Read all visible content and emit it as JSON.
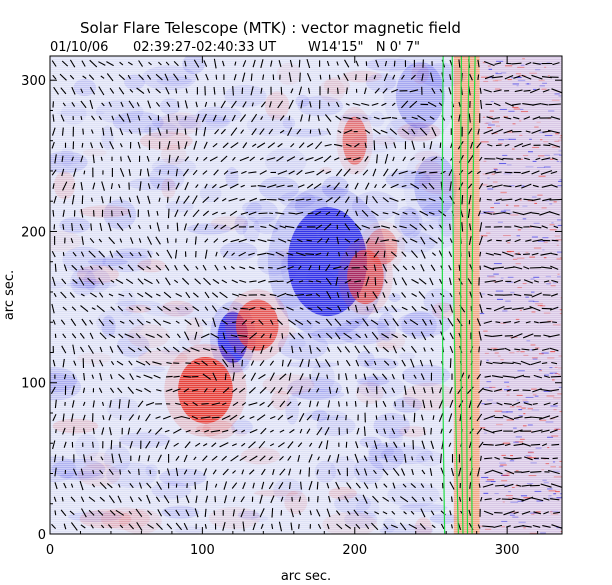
{
  "header": {
    "title": "Solar Flare Telescope (MTK) : vector magnetic field",
    "date": "01/10/06",
    "time_range": "02:39:27-02:40:33 UT",
    "position": "W14'15\"   N 0' 7\""
  },
  "chart_data": {
    "type": "heatmap",
    "description_type": "vector magnetogram",
    "xlabel": "arc sec.",
    "ylabel": "arc sec.",
    "xlim": [
      0,
      336
    ],
    "ylim": [
      0,
      316
    ],
    "xticks": [
      0,
      100,
      200,
      300
    ],
    "yticks": [
      0,
      100,
      200,
      300
    ],
    "colors": {
      "positive": "#e8251a",
      "negative": "#1f1fe6",
      "limb_contour": "#22dd44",
      "limb_band": "#ff7a30"
    },
    "magnetic_patches": [
      {
        "polarity": "negative",
        "cx": 182,
        "cy": 180,
        "rx": 26,
        "ry": 36,
        "strength": 1.0
      },
      {
        "polarity": "negative",
        "cx": 120,
        "cy": 130,
        "rx": 10,
        "ry": 17,
        "strength": 1.0
      },
      {
        "polarity": "positive",
        "cx": 102,
        "cy": 95,
        "rx": 18,
        "ry": 22,
        "strength": 0.95
      },
      {
        "polarity": "positive",
        "cx": 136,
        "cy": 138,
        "rx": 14,
        "ry": 17,
        "strength": 0.8
      },
      {
        "polarity": "positive",
        "cx": 207,
        "cy": 170,
        "rx": 12,
        "ry": 18,
        "strength": 0.7
      },
      {
        "polarity": "positive",
        "cx": 200,
        "cy": 260,
        "rx": 8,
        "ry": 16,
        "strength": 0.6
      },
      {
        "polarity": "positive",
        "cx": 218,
        "cy": 190,
        "rx": 10,
        "ry": 12,
        "strength": 0.4
      },
      {
        "polarity": "negative",
        "cx": 243,
        "cy": 290,
        "rx": 16,
        "ry": 22,
        "strength": 0.3
      },
      {
        "polarity": "negative",
        "cx": 253,
        "cy": 230,
        "rx": 14,
        "ry": 20,
        "strength": 0.25
      }
    ],
    "limb_x": [
      265,
      282
    ],
    "contour_lines": [
      {
        "x_bottom": 259,
        "x_top": 258
      },
      {
        "x_bottom": 268,
        "x_top": 264
      },
      {
        "x_bottom": 271,
        "x_top": 270
      },
      {
        "x_bottom": 274,
        "x_top": 275
      },
      {
        "x_bottom": 277,
        "x_top": 279
      }
    ],
    "transverse_field_vectors": "short black line segments on a regular grid, orientation varying across the field"
  }
}
